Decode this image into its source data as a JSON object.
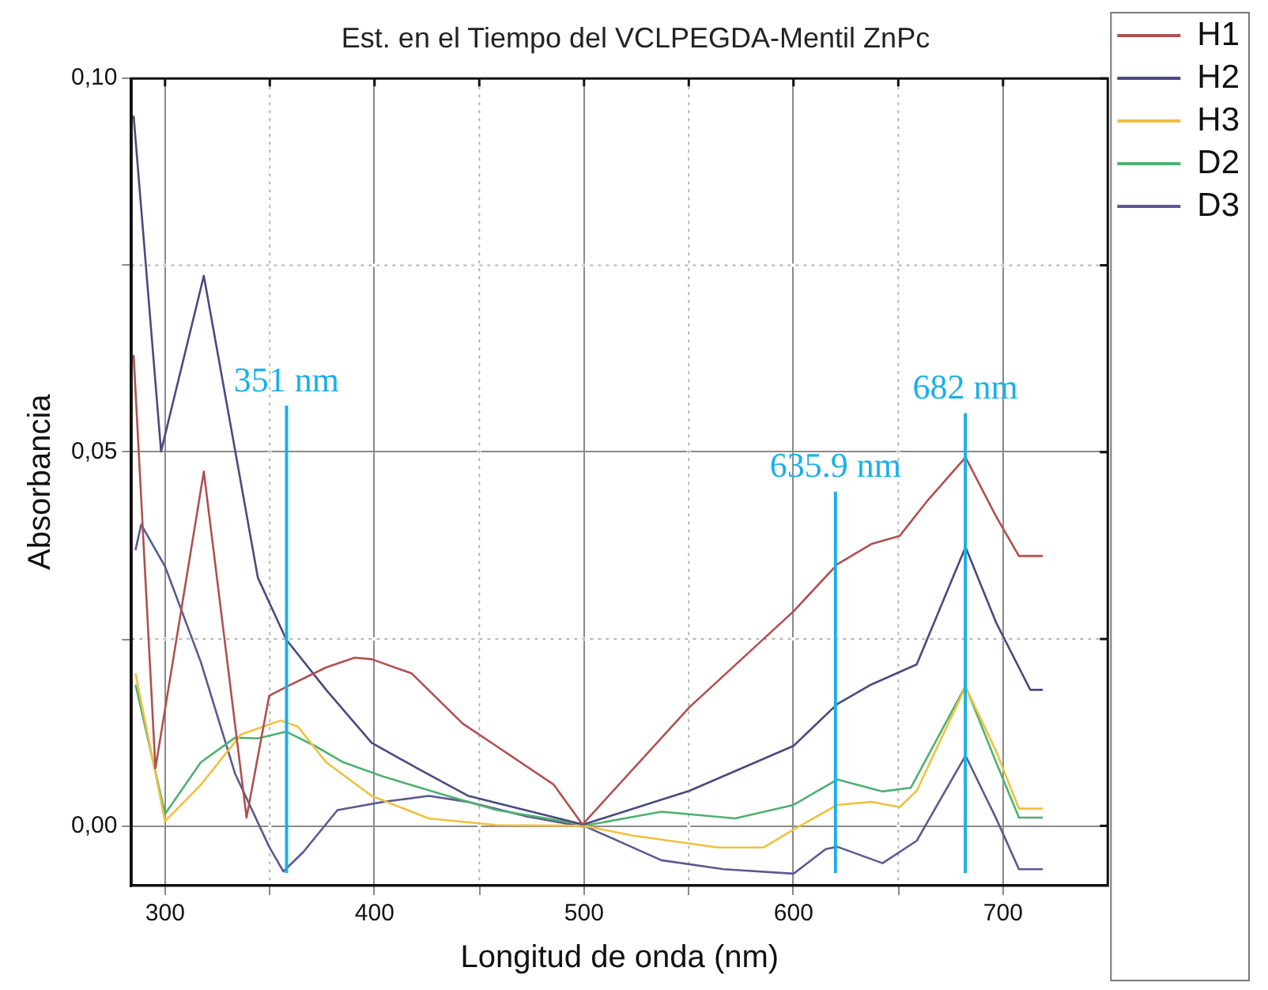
{
  "chart_data": {
    "type": "line",
    "title": "Est. en el Tiempo del VCLPEGDA-Mentil ZnPc",
    "xlabel": "Longitud de onda (nm)",
    "ylabel": "Absorbancia",
    "xlim": [
      284,
      750
    ],
    "ylim": [
      -0.008,
      0.1
    ],
    "xticks": [
      300,
      {
        "value": 350,
        "label": null
      },
      400,
      {
        "value": 450,
        "label": null
      },
      500,
      {
        "value": 550,
        "label": null
      },
      600,
      {
        "value": 650,
        "label": null
      },
      700
    ],
    "yticks": [
      {
        "value": 0,
        "label": "0,00"
      },
      {
        "value": 0.025,
        "label": null
      },
      {
        "value": 0.05,
        "label": "0,05"
      },
      {
        "value": 0.075,
        "label": null
      },
      {
        "value": 0.1,
        "label": "0,10"
      }
    ],
    "grid": true,
    "legend": "right",
    "marker": "none",
    "line_style": "solid",
    "series": [
      {
        "name": "H1",
        "color": "#b05050",
        "x": [
          285,
          295.4,
          318.5,
          338.9,
          349.7,
          357.9,
          376.9,
          390.5,
          398.6,
          417.7,
          442,
          458,
          485.6,
          499.2,
          500,
          550.4,
          600,
          620.9,
          637.1,
          650.7,
          664.2,
          682.1,
          696.7,
          707.6,
          719
        ],
        "values": [
          0.063,
          0.0077,
          0.0474,
          0.0011,
          0.0174,
          0.0186,
          0.0212,
          0.0225,
          0.0223,
          0.0204,
          0.0137,
          0.0107,
          0.0055,
          0.0002,
          0.0004,
          0.0159,
          0.0287,
          0.035,
          0.0377,
          0.0388,
          0.0436,
          0.0493,
          0.0414,
          0.0361,
          0.0361
        ]
      },
      {
        "name": "H2",
        "color": "#4a4a80",
        "x": [
          285,
          298.1,
          318.5,
          333.4,
          344.3,
          357.9,
          376.9,
          398.6,
          420.4,
          444.8,
          472,
          499.2,
          500,
          550.4,
          600,
          620.9,
          637.1,
          658.8,
          682.1,
          696.7,
          713,
          719
        ],
        "values": [
          0.095,
          0.0501,
          0.0736,
          0.0503,
          0.0332,
          0.0249,
          0.0182,
          0.0111,
          0.0077,
          0.004,
          0.0021,
          0.0002,
          0.0002,
          0.0047,
          0.0107,
          0.0163,
          0.0189,
          0.0216,
          0.0373,
          0.0272,
          0.0182,
          0.0182
        ]
      },
      {
        "name": "H3",
        "color": "#f0c040",
        "x": [
          285.9,
          300,
          317.1,
          336.1,
          355.2,
          363.3,
          376.9,
          398.6,
          425.8,
          458.4,
          499.2,
          500,
          523.3,
          564,
          585.6,
          600,
          620.9,
          637.1,
          650.7,
          658.8,
          682.1,
          696.7,
          707.6,
          719
        ],
        "values": [
          0.0204,
          0.0006,
          0.0055,
          0.0122,
          0.0141,
          0.0133,
          0.0085,
          0.004,
          0.001,
          0.0001,
          0,
          0,
          -0.0013,
          -0.0029,
          -0.0029,
          -0.0005,
          0.0028,
          0.0032,
          0.0025,
          0.0047,
          0.0186,
          0.01,
          0.0023,
          0.0023
        ]
      },
      {
        "name": "D2",
        "color": "#50b070",
        "x": [
          285.9,
          300,
          317.1,
          333.4,
          344.3,
          357.9,
          371.5,
          385.1,
          404.1,
          431.3,
          458.4,
          499.2,
          500,
          536.9,
          572.1,
          600,
          620.9,
          642.5,
          656,
          682.1,
          696.7,
          707.6,
          719
        ],
        "values": [
          0.0189,
          0.0016,
          0.0085,
          0.0118,
          0.0117,
          0.0126,
          0.0107,
          0.0085,
          0.0066,
          0.0043,
          0.0021,
          0.0002,
          0,
          0.0019,
          0.001,
          0.0028,
          0.0062,
          0.0046,
          0.0051,
          0.0187,
          0.0085,
          0.0011,
          0.0011
        ]
      },
      {
        "name": "D3",
        "color": "#5a5a90",
        "x": [
          285.9,
          288.6,
          300,
          317.1,
          333.4,
          349.7,
          356.5,
          366,
          382.3,
          404.1,
          425.8,
          444.8,
          472,
          499.2,
          500,
          536.9,
          566.7,
          600,
          615.4,
          620.9,
          642.5,
          658.8,
          682.1,
          696.7,
          707.6,
          719
        ],
        "values": [
          0.0369,
          0.0403,
          0.0347,
          0.0219,
          0.007,
          -0.0028,
          -0.0061,
          -0.0035,
          0.0021,
          0.0032,
          0.004,
          0.0032,
          0.0013,
          -0.0001,
          0,
          -0.0046,
          -0.0058,
          -0.0064,
          -0.0031,
          -0.0028,
          -0.005,
          -0.002,
          0.0094,
          0.001,
          -0.0058,
          -0.0058
        ]
      }
    ],
    "ref_lines": [
      {
        "axis": "x",
        "value": 358,
        "label": "351 nm",
        "color": "#1ab0e8"
      },
      {
        "axis": "x",
        "value": 620,
        "label": "635.9 nm",
        "color": "#1ab0e8"
      },
      {
        "axis": "x",
        "value": 682,
        "label": "682 nm",
        "color": "#1ab0e8"
      }
    ]
  }
}
